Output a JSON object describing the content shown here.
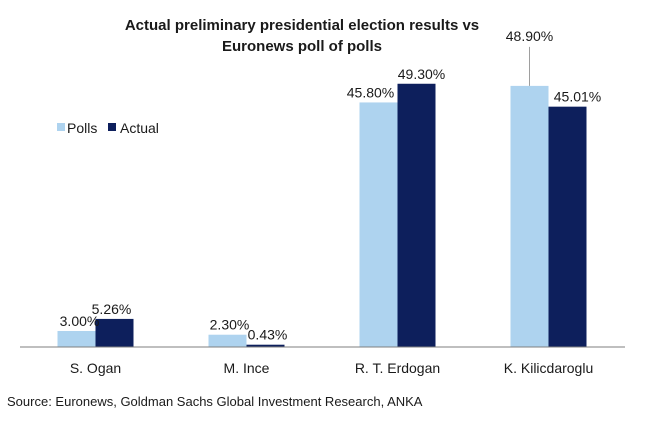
{
  "chart_data": {
    "type": "bar",
    "title": [
      "Actual preliminary presidential election results vs",
      "Euronews poll of polls"
    ],
    "categories": [
      "S. Ogan",
      "M. Ince",
      "R. T. Erdogan",
      "K. Kilicdaroglu"
    ],
    "series": [
      {
        "name": "Polls",
        "color": "#aed3ef",
        "values": [
          3.0,
          2.3,
          45.8,
          48.9
        ],
        "labels": [
          "3.00%",
          "2.30%",
          "45.80%",
          "48.90%"
        ]
      },
      {
        "name": "Actual",
        "color": "#0d1f5c",
        "values": [
          5.26,
          0.43,
          49.3,
          45.01
        ],
        "labels": [
          "5.26%",
          "0.43%",
          "49.30%",
          "45.01%"
        ]
      }
    ],
    "ylim": [
      0,
      53
    ],
    "grid": false,
    "legend_position": "left"
  },
  "source": "Source: Euronews, Goldman Sachs Global Investment Research, ANKA"
}
